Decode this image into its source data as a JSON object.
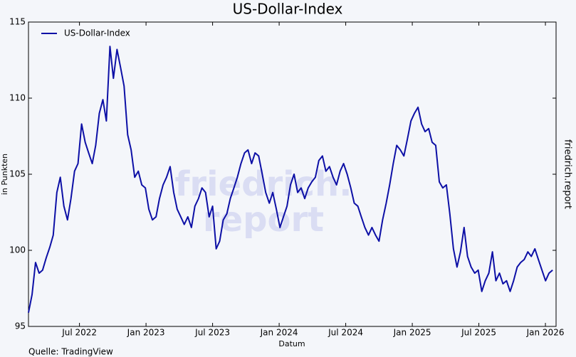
{
  "chart_data": {
    "type": "line",
    "title": "US-Dollar-Index",
    "x_label": "Datum",
    "y_label": "in Punkten",
    "source": "Quelle: TradingView",
    "side_label": "friedrich.report",
    "watermark": [
      "friedrich.",
      "report"
    ],
    "legend": "upper left",
    "grid": false,
    "xlim": [
      2022.117,
      2026.08
    ],
    "ylim": [
      95,
      115
    ],
    "xticks": [
      {
        "value": 2022.5,
        "label": "Jul 2022"
      },
      {
        "value": 2023.0,
        "label": "Jan 2023"
      },
      {
        "value": 2023.5,
        "label": "Jul 2023"
      },
      {
        "value": 2024.0,
        "label": "Jan 2024"
      },
      {
        "value": 2024.5,
        "label": "Jul 2024"
      },
      {
        "value": 2025.0,
        "label": "Jan 2025"
      },
      {
        "value": 2025.5,
        "label": "Jul 2025"
      },
      {
        "value": 2026.0,
        "label": "Jan 2026"
      }
    ],
    "yticks": [
      95,
      100,
      105,
      110,
      115
    ],
    "x": [
      2022.117,
      2022.144,
      2022.17,
      2022.197,
      2022.223,
      2022.25,
      2022.277,
      2022.303,
      2022.33,
      2022.356,
      2022.383,
      2022.41,
      2022.436,
      2022.463,
      2022.489,
      2022.516,
      2022.543,
      2022.569,
      2022.596,
      2022.622,
      2022.649,
      2022.676,
      2022.702,
      2022.729,
      2022.755,
      2022.782,
      2022.809,
      2022.835,
      2022.862,
      2022.888,
      2022.915,
      2022.942,
      2022.968,
      2022.995,
      2023.021,
      2023.048,
      2023.075,
      2023.101,
      2023.128,
      2023.154,
      2023.181,
      2023.208,
      2023.234,
      2023.261,
      2023.287,
      2023.314,
      2023.341,
      2023.367,
      2023.394,
      2023.42,
      2023.447,
      2023.474,
      2023.5,
      2023.527,
      2023.553,
      2023.58,
      2023.607,
      2023.633,
      2023.66,
      2023.686,
      2023.713,
      2023.74,
      2023.766,
      2023.793,
      2023.819,
      2023.846,
      2023.873,
      2023.899,
      2023.926,
      2023.952,
      2023.979,
      2024.006,
      2024.032,
      2024.059,
      2024.085,
      2024.112,
      2024.139,
      2024.165,
      2024.192,
      2024.218,
      2024.245,
      2024.272,
      2024.298,
      2024.325,
      2024.351,
      2024.378,
      2024.405,
      2024.431,
      2024.458,
      2024.484,
      2024.511,
      2024.538,
      2024.564,
      2024.591,
      2024.617,
      2024.644,
      2024.671,
      2024.697,
      2024.724,
      2024.75,
      2024.777,
      2024.804,
      2024.83,
      2024.857,
      2024.883,
      2024.91,
      2024.937,
      2024.963,
      2024.99,
      2025.016,
      2025.043,
      2025.07,
      2025.096,
      2025.123,
      2025.149,
      2025.176,
      2025.203,
      2025.229,
      2025.256,
      2025.282,
      2025.309,
      2025.336,
      2025.362,
      2025.389,
      2025.415,
      2025.442,
      2025.469,
      2025.495,
      2025.522,
      2025.548,
      2025.575,
      2025.602,
      2025.628,
      2025.655,
      2025.681,
      2025.708,
      2025.735,
      2025.761,
      2025.788,
      2025.814,
      2025.841,
      2025.868,
      2025.894,
      2025.921,
      2025.947,
      2025.974,
      2026.001,
      2026.027,
      2026.054
    ],
    "series": [
      {
        "name": "US-Dollar-Index",
        "color": "#0d10a6",
        "values": [
          95.9,
          97.1,
          99.2,
          98.5,
          98.7,
          99.5,
          100.2,
          101,
          103.8,
          104.8,
          102.9,
          102,
          103.4,
          105.2,
          105.7,
          108.3,
          107.1,
          106.4,
          105.7,
          106.9,
          109,
          109.9,
          108.5,
          113.4,
          111.3,
          113.2,
          112,
          110.8,
          107.6,
          106.6,
          104.8,
          105.2,
          104.3,
          104.1,
          102.7,
          102,
          102.2,
          103.4,
          104.3,
          104.8,
          105.5,
          103.8,
          102.7,
          102.2,
          101.7,
          102.2,
          101.5,
          102.9,
          103.4,
          104.1,
          103.8,
          102.2,
          102.9,
          100.1,
          100.6,
          102,
          102.4,
          103.4,
          104.1,
          104.8,
          105.7,
          106.4,
          106.6,
          105.7,
          106.4,
          106.2,
          105,
          103.8,
          103.1,
          103.8,
          102.7,
          101.5,
          102.2,
          102.9,
          104.3,
          105,
          103.8,
          104.1,
          103.4,
          104.1,
          104.5,
          104.8,
          105.9,
          106.2,
          105.2,
          105.5,
          104.8,
          104.3,
          105.2,
          105.7,
          105,
          104.1,
          103.1,
          102.9,
          102.2,
          101.5,
          101,
          101.5,
          101,
          100.6,
          102,
          103.1,
          104.3,
          105.7,
          106.9,
          106.6,
          106.2,
          107.3,
          108.5,
          109,
          109.4,
          108.3,
          107.8,
          108,
          107.1,
          106.9,
          104.5,
          104.1,
          104.3,
          102.4,
          100.1,
          98.9,
          99.9,
          101.5,
          99.6,
          98.9,
          98.5,
          98.7,
          97.3,
          98,
          98.5,
          99.9,
          98,
          98.5,
          97.8,
          98,
          97.3,
          98,
          98.9,
          99.2,
          99.4,
          99.9,
          99.6,
          100.1,
          99.4,
          98.7,
          98,
          98.5,
          98.7
        ]
      }
    ]
  }
}
